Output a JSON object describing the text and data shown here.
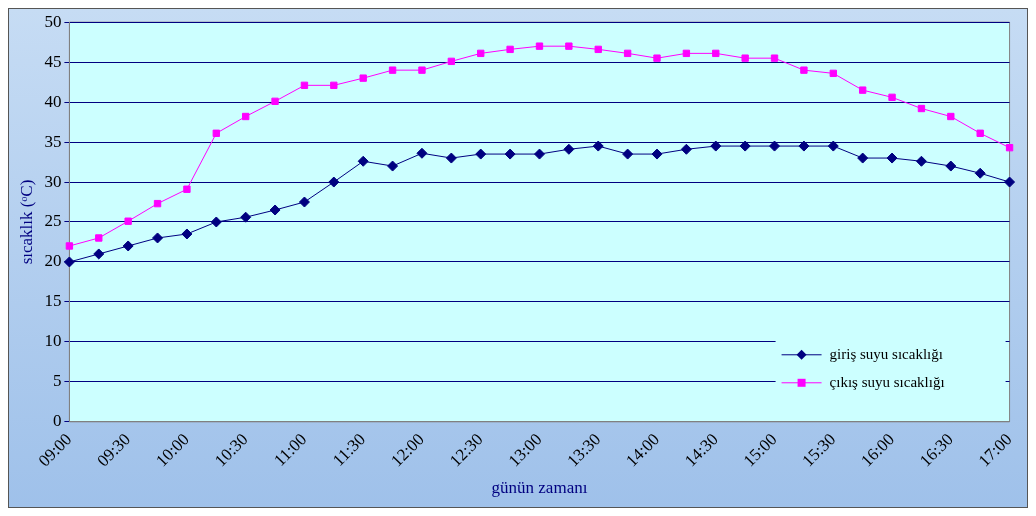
{
  "chart_data": {
    "type": "line",
    "xlabel": "günün zamanı",
    "ylabel": "sıcaklık (ᵒC)",
    "categories": [
      "09:00",
      null,
      "09:30",
      null,
      "10:00",
      null,
      "10:30",
      null,
      "11:00",
      null,
      "11:30",
      null,
      "12:00",
      null,
      "12:30",
      null,
      "13:00",
      null,
      "13:30",
      null,
      "14:00",
      null,
      "14:30",
      null,
      "15:00",
      null,
      "15:30",
      null,
      "16:00",
      null,
      "16:30",
      null,
      "17:00"
    ],
    "series": [
      {
        "name": "giriş suyu sıcaklığı",
        "color": "#000080",
        "marker": "diamond",
        "values": [
          20,
          21,
          22,
          23,
          23.5,
          25,
          25.6,
          26.5,
          27.5,
          30,
          32.6,
          32,
          33.6,
          33,
          33.5,
          33.5,
          33.5,
          34.1,
          34.5,
          33.5,
          33.5,
          34.1,
          34.5,
          34.5,
          34.5,
          34.5,
          34.5,
          33,
          33,
          32.6,
          32,
          31.1,
          30
        ]
      },
      {
        "name": "çıkış suyu sıcaklığı",
        "color": "#ff00ff",
        "marker": "square",
        "values": [
          22,
          23,
          25.1,
          27.3,
          29.1,
          36.1,
          38.2,
          40.1,
          42.1,
          42.1,
          43,
          44,
          44,
          45.1,
          46.1,
          46.6,
          47,
          47,
          46.6,
          46.1,
          45.5,
          46.1,
          46.1,
          45.5,
          45.5,
          44,
          43.6,
          41.5,
          40.6,
          39.2,
          38.2,
          36.1,
          34.3
        ]
      }
    ],
    "ylim": [
      0,
      50
    ],
    "yticks": [
      0,
      5,
      10,
      15,
      20,
      25,
      30,
      35,
      40,
      45,
      50
    ],
    "grid": "y",
    "legend": "bottom right"
  }
}
